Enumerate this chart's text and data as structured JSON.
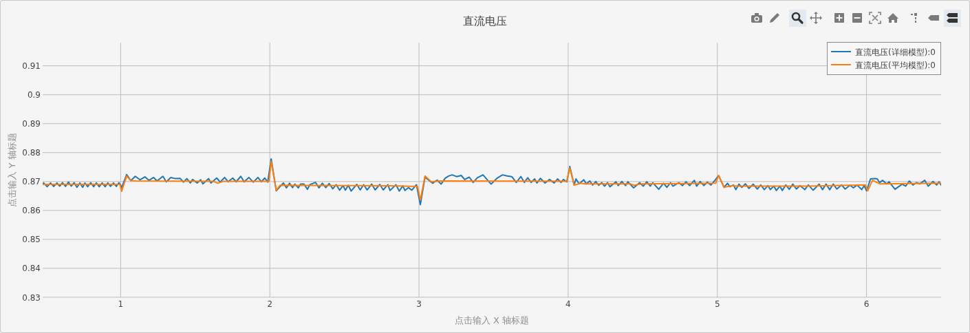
{
  "chart_data": {
    "type": "line",
    "title": "直流电压",
    "xlabel": "点击输入 X 轴标题",
    "ylabel": "点击输入 Y 轴标题",
    "xlim": [
      0.477,
      6.5
    ],
    "ylim": [
      0.83,
      0.918
    ],
    "xticks": [
      1,
      2,
      3,
      4,
      5,
      6
    ],
    "yticks": [
      0.83,
      0.84,
      0.85,
      0.86,
      0.87,
      0.88,
      0.89,
      0.9,
      0.91
    ],
    "grid": true,
    "legend": "top right",
    "series": [
      {
        "name": "直流电压(详细模型):0",
        "color": "#1f77b4",
        "x": [
          0.477,
          0.484,
          0.507,
          0.53,
          0.551,
          0.573,
          0.591,
          0.61,
          0.63,
          0.65,
          0.668,
          0.688,
          0.707,
          0.727,
          0.745,
          0.76,
          0.779,
          0.799,
          0.819,
          0.837,
          0.856,
          0.876,
          0.896,
          0.914,
          0.932,
          0.952,
          0.971,
          0.988,
          1.0,
          1.006,
          1.04,
          1.068,
          1.098,
          1.129,
          1.163,
          1.19,
          1.221,
          1.244,
          1.283,
          1.306,
          1.336,
          1.367,
          1.398,
          1.421,
          1.444,
          1.467,
          1.482,
          1.513,
          1.536,
          1.551,
          1.59,
          1.605,
          1.644,
          1.667,
          1.697,
          1.72,
          1.751,
          1.774,
          1.805,
          1.828,
          1.859,
          1.889,
          1.92,
          1.943,
          1.966,
          1.986,
          2.009,
          2.043,
          2.091,
          2.111,
          2.132,
          2.152,
          2.168,
          2.191,
          2.206,
          2.229,
          2.252,
          2.268,
          2.306,
          2.329,
          2.352,
          2.375,
          2.398,
          2.422,
          2.445,
          2.468,
          2.491,
          2.506,
          2.526,
          2.545,
          2.583,
          2.606,
          2.629,
          2.652,
          2.683,
          2.706,
          2.737,
          2.76,
          2.791,
          2.806,
          2.845,
          2.868,
          2.891,
          2.906,
          2.929,
          2.952,
          2.983,
          3.009,
          3.04,
          3.091,
          3.122,
          3.148,
          3.175,
          3.198,
          3.222,
          3.252,
          3.283,
          3.306,
          3.337,
          3.363,
          3.391,
          3.429,
          3.483,
          3.522,
          3.56,
          3.591,
          3.622,
          3.652,
          3.683,
          3.706,
          3.729,
          3.752,
          3.775,
          3.791,
          3.814,
          3.845,
          3.875,
          3.906,
          3.929,
          3.952,
          3.968,
          3.991,
          4.011,
          4.04,
          4.052,
          4.073,
          4.105,
          4.121,
          4.145,
          4.164,
          4.185,
          4.205,
          4.225,
          4.244,
          4.264,
          4.28,
          4.32,
          4.336,
          4.36,
          4.384,
          4.4,
          4.439,
          4.479,
          4.503,
          4.527,
          4.551,
          4.567,
          4.607,
          4.639,
          4.662,
          4.686,
          4.702,
          4.742,
          4.766,
          4.79,
          4.814,
          4.846,
          4.861,
          4.885,
          4.909,
          4.933,
          4.957,
          4.981,
          5.008,
          5.045,
          5.068,
          5.084,
          5.108,
          5.124,
          5.145,
          5.164,
          5.188,
          5.212,
          5.24,
          5.268,
          5.291,
          5.315,
          5.339,
          5.355,
          5.379,
          5.395,
          5.419,
          5.435,
          5.459,
          5.482,
          5.506,
          5.53,
          5.554,
          5.586,
          5.61,
          5.642,
          5.682,
          5.705,
          5.729,
          5.753,
          5.777,
          5.801,
          5.833,
          5.857,
          5.889,
          5.912,
          5.936,
          5.968,
          5.984,
          6.0,
          6.027,
          6.056,
          6.072,
          6.088,
          6.107,
          6.135,
          6.151,
          6.191,
          6.215,
          6.239,
          6.263,
          6.287,
          6.311,
          6.334,
          6.358,
          6.39,
          6.414,
          6.446,
          6.47,
          6.486,
          6.5
        ],
        "values": [
          0.8692,
          0.8695,
          0.8682,
          0.8695,
          0.8683,
          0.8695,
          0.8684,
          0.8696,
          0.8683,
          0.8698,
          0.8684,
          0.8696,
          0.868,
          0.8695,
          0.868,
          0.8695,
          0.8682,
          0.8696,
          0.8682,
          0.8695,
          0.8682,
          0.8695,
          0.8682,
          0.8695,
          0.8683,
          0.8695,
          0.8683,
          0.8696,
          0.8688,
          0.8678,
          0.8724,
          0.8703,
          0.8718,
          0.8706,
          0.8716,
          0.8704,
          0.8714,
          0.8702,
          0.8718,
          0.8699,
          0.8714,
          0.871,
          0.8711,
          0.8698,
          0.871,
          0.8695,
          0.8707,
          0.8695,
          0.8706,
          0.8692,
          0.871,
          0.8695,
          0.8712,
          0.8698,
          0.8714,
          0.8699,
          0.8712,
          0.8699,
          0.8718,
          0.8699,
          0.8714,
          0.8698,
          0.8714,
          0.8699,
          0.8712,
          0.8698,
          0.8778,
          0.8668,
          0.8695,
          0.8678,
          0.8694,
          0.8679,
          0.8691,
          0.8678,
          0.8691,
          0.8691,
          0.8673,
          0.8689,
          0.8697,
          0.8678,
          0.8694,
          0.8679,
          0.8693,
          0.8675,
          0.8689,
          0.867,
          0.8686,
          0.867,
          0.8687,
          0.8667,
          0.869,
          0.8671,
          0.8689,
          0.8671,
          0.8691,
          0.8671,
          0.869,
          0.8671,
          0.8689,
          0.8669,
          0.8689,
          0.8667,
          0.8685,
          0.8669,
          0.8679,
          0.867,
          0.8689,
          0.862,
          0.8715,
          0.8694,
          0.8705,
          0.8691,
          0.8711,
          0.8719,
          0.8723,
          0.8717,
          0.8721,
          0.8707,
          0.8715,
          0.8697,
          0.8713,
          0.8723,
          0.8691,
          0.8711,
          0.8723,
          0.8719,
          0.8717,
          0.8697,
          0.8717,
          0.8697,
          0.8713,
          0.8697,
          0.8709,
          0.8695,
          0.8711,
          0.8695,
          0.8707,
          0.8695,
          0.8709,
          0.8697,
          0.8707,
          0.8699,
          0.8752,
          0.8688,
          0.8709,
          0.8692,
          0.8706,
          0.8692,
          0.8702,
          0.8688,
          0.87,
          0.8687,
          0.8696,
          0.8684,
          0.8696,
          0.8682,
          0.8699,
          0.8686,
          0.87,
          0.8686,
          0.8699,
          0.8678,
          0.8696,
          0.8684,
          0.8699,
          0.8684,
          0.8696,
          0.8673,
          0.8694,
          0.868,
          0.8696,
          0.8684,
          0.8696,
          0.8686,
          0.8699,
          0.8686,
          0.8704,
          0.8684,
          0.87,
          0.8686,
          0.8698,
          0.8688,
          0.8702,
          0.8721,
          0.868,
          0.8694,
          0.8682,
          0.8688,
          0.8672,
          0.8691,
          0.868,
          0.8692,
          0.8676,
          0.8691,
          0.8674,
          0.8688,
          0.8672,
          0.8686,
          0.8672,
          0.8684,
          0.8669,
          0.8684,
          0.8669,
          0.8688,
          0.8673,
          0.8691,
          0.8674,
          0.8686,
          0.8672,
          0.8688,
          0.867,
          0.8691,
          0.8672,
          0.8691,
          0.8672,
          0.8691,
          0.8674,
          0.8688,
          0.8674,
          0.8687,
          0.8678,
          0.8688,
          0.8672,
          0.8686,
          0.8668,
          0.8709,
          0.871,
          0.8709,
          0.8696,
          0.8704,
          0.8692,
          0.8699,
          0.8673,
          0.8682,
          0.8691,
          0.8684,
          0.8702,
          0.8688,
          0.8696,
          0.8692,
          0.8704,
          0.8684,
          0.87,
          0.8688,
          0.8699,
          0.8688
        ]
      },
      {
        "name": "直流电压(平均模型):0",
        "color": "#ff7f0e",
        "x": [
          0.477,
          0.995,
          1.006,
          1.04,
          1.068,
          1.1,
          1.62,
          1.651,
          1.69,
          1.995,
          2.009,
          2.043,
          2.068,
          2.5,
          2.8,
          2.99,
          3.009,
          3.04,
          3.083,
          3.145,
          3.991,
          4.011,
          4.04,
          4.081,
          4.113,
          4.416,
          4.439,
          4.495,
          4.989,
          5.008,
          5.045,
          5.1,
          5.132,
          5.61,
          5.992,
          6.008,
          6.04,
          6.088,
          6.5
        ],
        "values": [
          0.869,
          0.869,
          0.8666,
          0.8719,
          0.8703,
          0.8702,
          0.8701,
          0.8694,
          0.8701,
          0.8701,
          0.877,
          0.867,
          0.8687,
          0.8686,
          0.8685,
          0.8683,
          0.8636,
          0.8719,
          0.8699,
          0.8702,
          0.8701,
          0.8747,
          0.8687,
          0.8694,
          0.8692,
          0.8692,
          0.8687,
          0.8692,
          0.8694,
          0.8721,
          0.868,
          0.8686,
          0.8684,
          0.8684,
          0.8688,
          0.8668,
          0.8704,
          0.8692,
          0.8694
        ]
      }
    ]
  }
}
